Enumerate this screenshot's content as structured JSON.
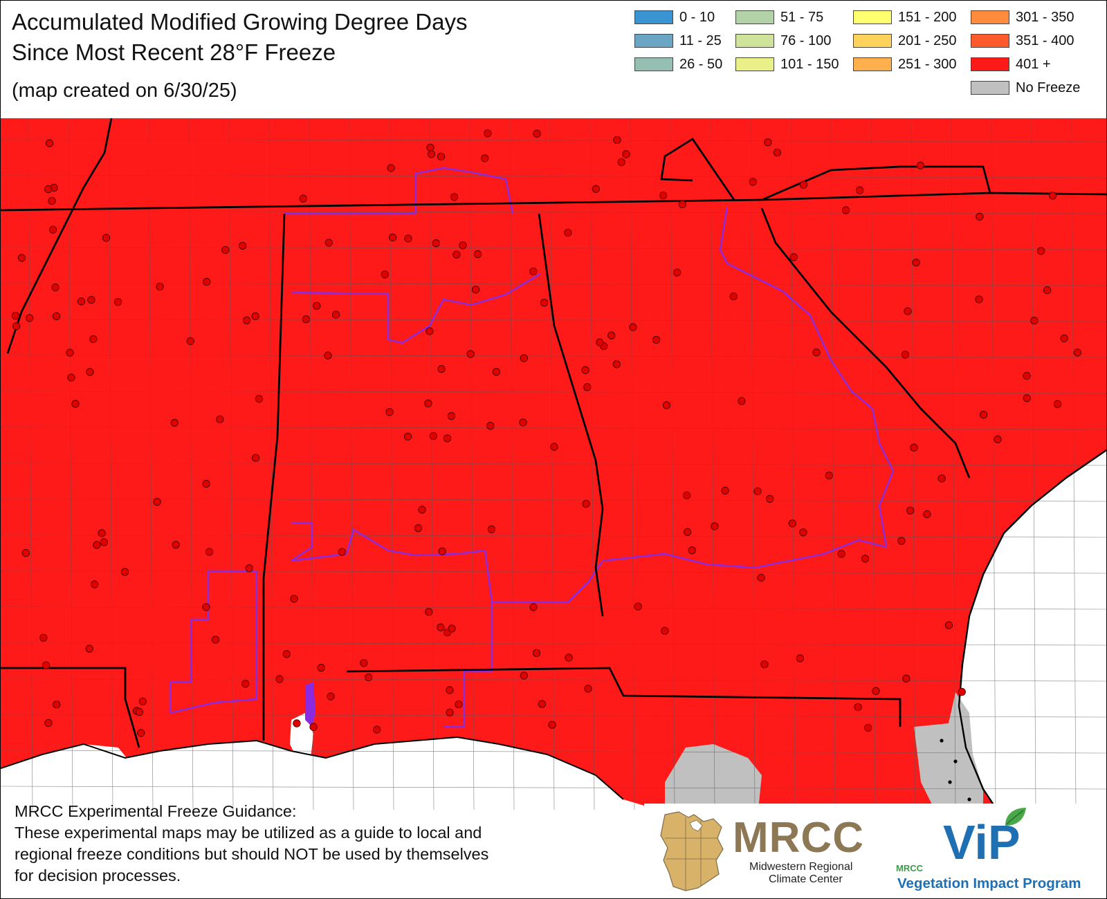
{
  "title": {
    "line1": "Accumulated Modified Growing Degree Days",
    "line2": "Since Most Recent 28°F Freeze",
    "subtitle": "(map created on 6/30/25)"
  },
  "legend": [
    {
      "label": "0 - 10",
      "color": "#3a94d2"
    },
    {
      "label": "11 - 25",
      "color": "#6aa6c4"
    },
    {
      "label": "26 - 50",
      "color": "#96bfb4"
    },
    {
      "label": "51 - 75",
      "color": "#b4d2a8"
    },
    {
      "label": "76 - 100",
      "color": "#cfe49a"
    },
    {
      "label": "101 - 150",
      "color": "#eaf088"
    },
    {
      "label": "151 - 200",
      "color": "#ffff70"
    },
    {
      "label": "201 - 250",
      "color": "#ffd25c"
    },
    {
      "label": "251 - 300",
      "color": "#ffb04c"
    },
    {
      "label": "301 - 350",
      "color": "#ff8c3c"
    },
    {
      "label": "351 - 400",
      "color": "#ff5a2c"
    },
    {
      "label": "401 +",
      "color": "#ff1a1a"
    },
    {
      "label": "No Freeze",
      "color": "#c0c0c0"
    }
  ],
  "map": {
    "fill_color": "#ff1a1a",
    "no_freeze_color": "#c0c0c0",
    "state_border_color": "#000000",
    "county_border_color": "#555555",
    "cwa_border_color": "#8a2be2",
    "station_color": "#e00000",
    "water_color": "#ffffff"
  },
  "disclaimer": {
    "heading": "MRCC Experimental Freeze Guidance:",
    "lines": [
      "These experimental maps may be utilized as a guide to local and",
      "regional freeze conditions but should NOT be used by themselves",
      "for decision processes."
    ]
  },
  "logos": {
    "mrcc_name": "MRCC",
    "mrcc_line1": "Midwestern Regional",
    "mrcc_line2": "Climate Center",
    "vip_small": "MRCC",
    "vip_name": "ViP",
    "vip_program": "Vegetation Impact Program"
  }
}
